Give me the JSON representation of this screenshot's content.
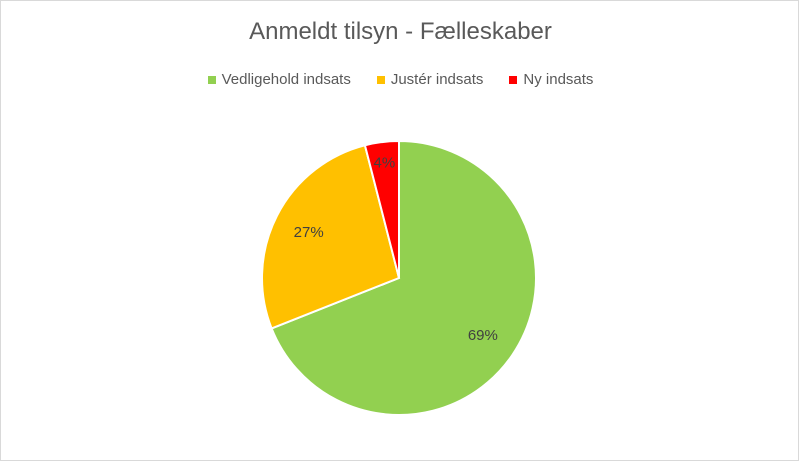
{
  "chart_data": {
    "type": "pie",
    "title": "Anmeldt tilsyn - Fælleskaber",
    "legend_position": "top",
    "categories": [
      "Vedligehold indsats",
      "Justér indsats",
      "Ny indsats"
    ],
    "values": [
      69,
      27,
      4
    ],
    "labels": [
      "69%",
      "27%",
      "4%"
    ],
    "colors": [
      "#92d050",
      "#ffc000",
      "#ff0000"
    ]
  }
}
